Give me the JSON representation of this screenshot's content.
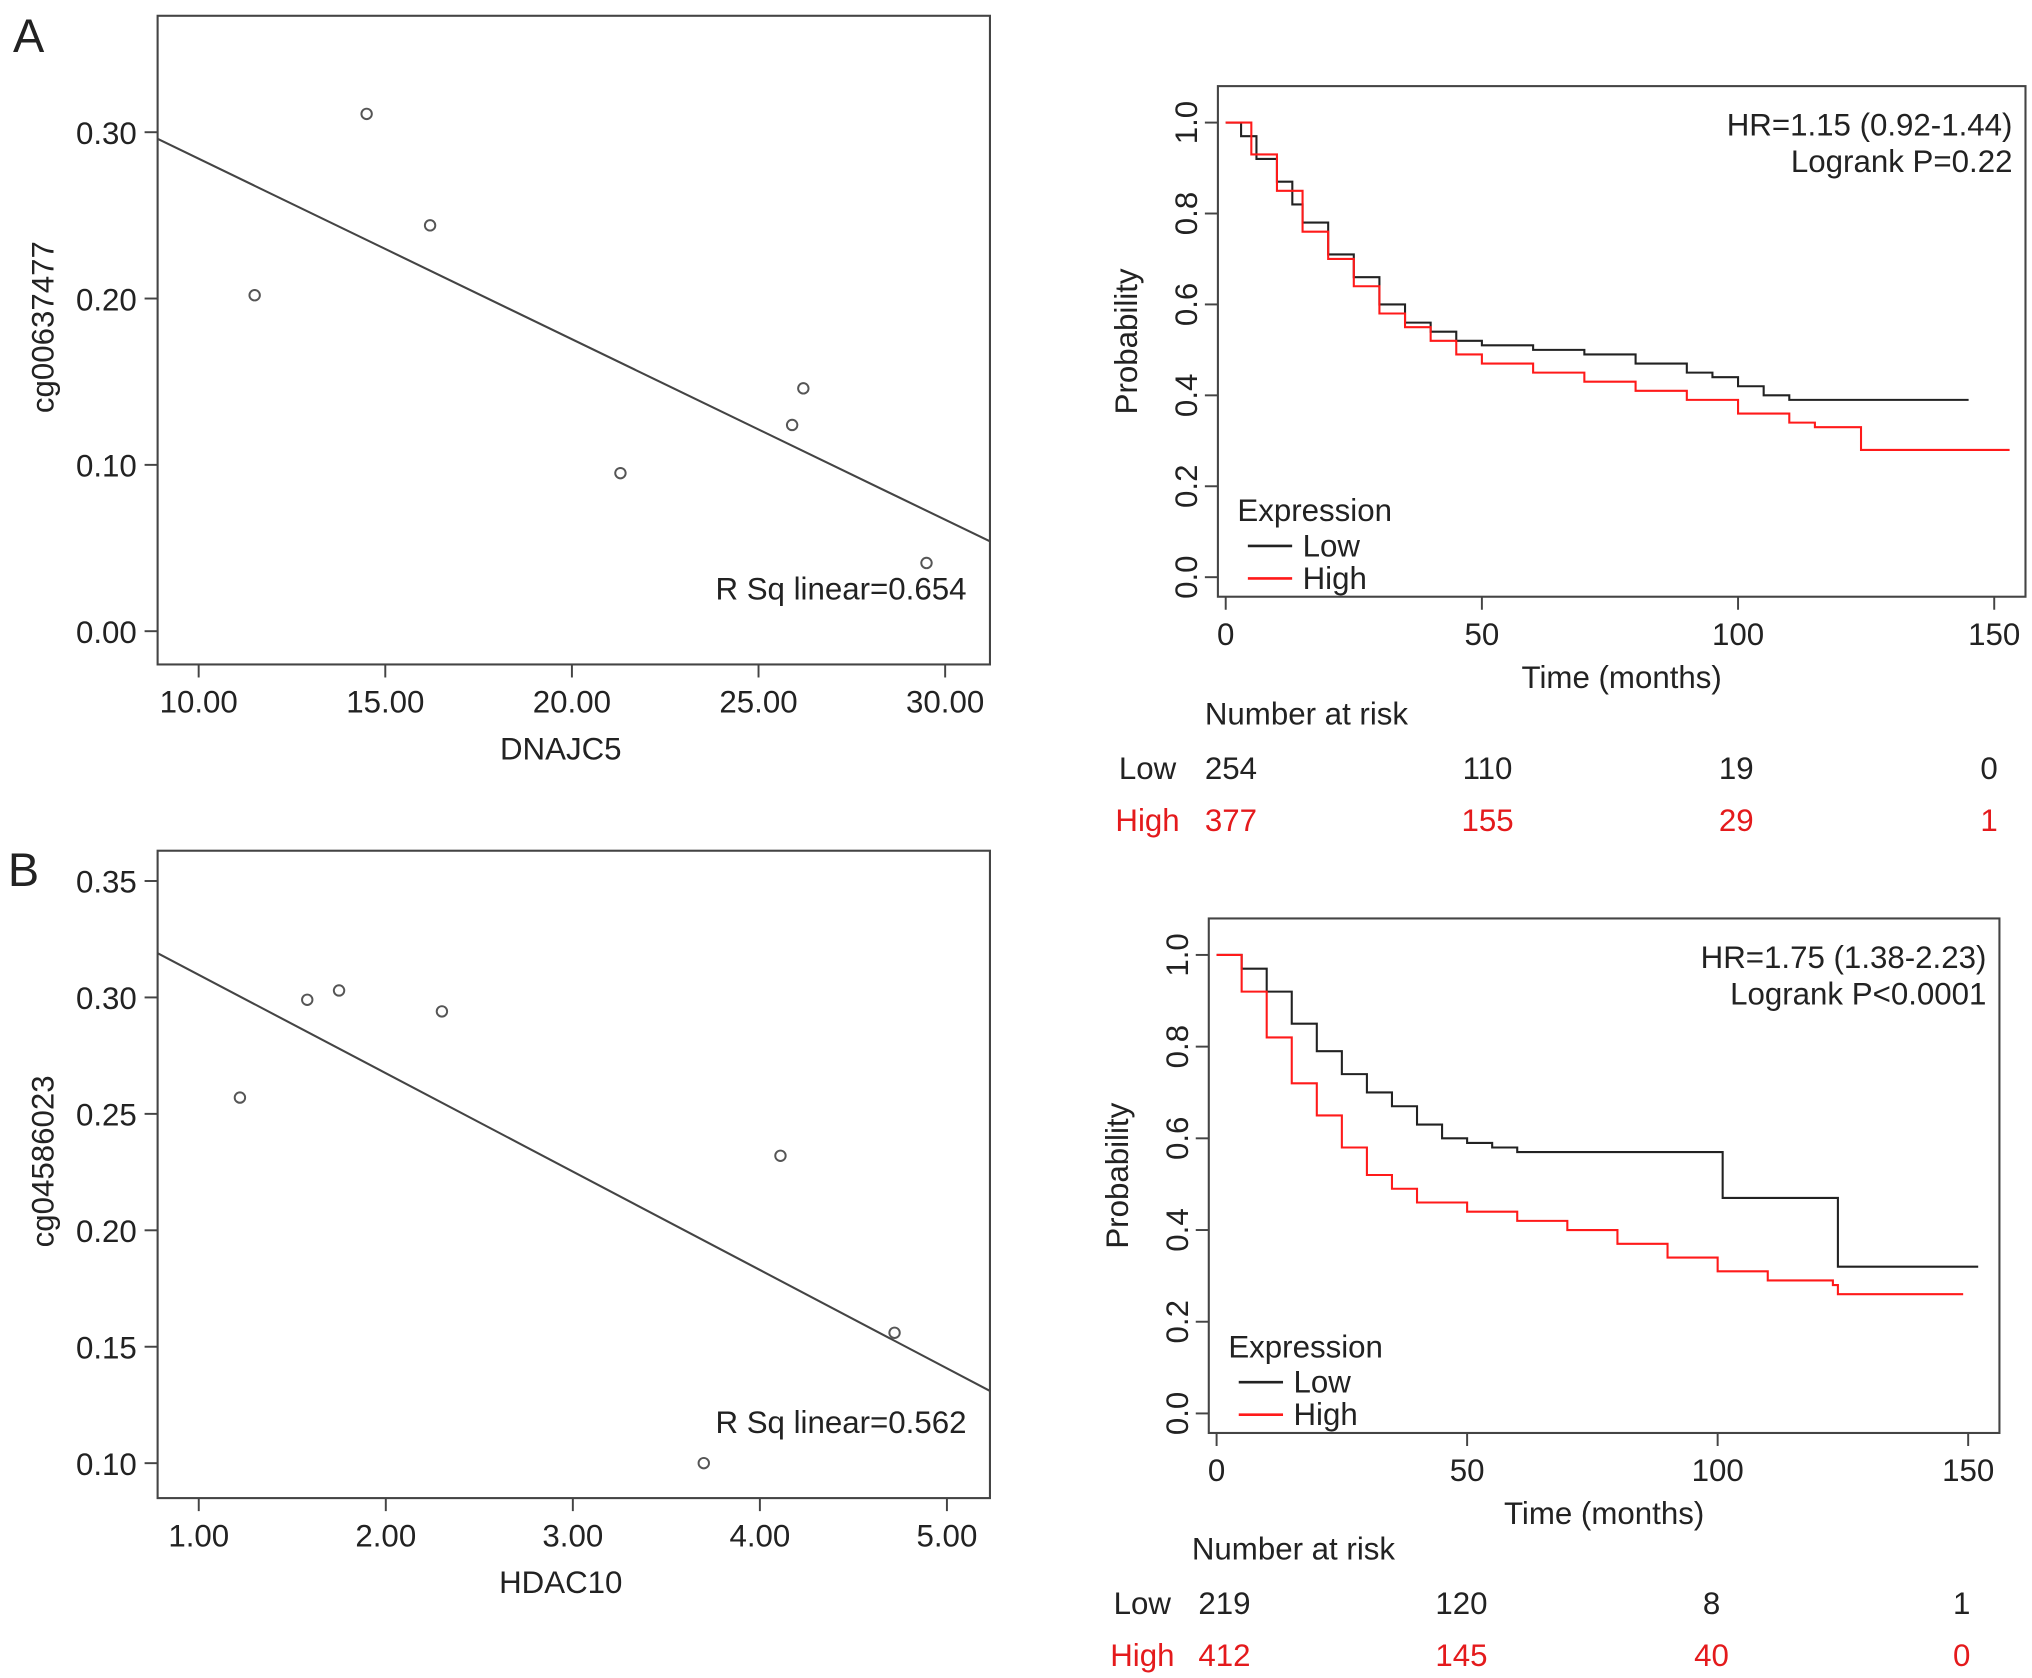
{
  "panel_labels": [
    "A",
    "B"
  ],
  "colors": {
    "low": "#222222",
    "high": "#ff1a1a",
    "fit_line": "#444444",
    "points": "#555555"
  },
  "chart_data": [
    {
      "type": "scatter",
      "panel": "A",
      "xlabel": "DNAJC5",
      "ylabel": "cg00637477",
      "xlim": [
        8.9,
        31.2
      ],
      "ylim": [
        -0.02,
        0.37
      ],
      "xticks": [
        10,
        15,
        20,
        25,
        30
      ],
      "xtick_labels": [
        "10.00",
        "15.00",
        "20.00",
        "25.00",
        "30.00"
      ],
      "yticks": [
        0,
        0.1,
        0.2,
        0.3
      ],
      "ytick_labels": [
        "0.00",
        "0.10",
        "0.20",
        "0.30"
      ],
      "points": [
        [
          14.5,
          0.311
        ],
        [
          16.2,
          0.244
        ],
        [
          11.5,
          0.202
        ],
        [
          26.2,
          0.146
        ],
        [
          25.9,
          0.124
        ],
        [
          21.3,
          0.095
        ],
        [
          29.5,
          0.041
        ]
      ],
      "fit_line": [
        [
          8.9,
          0.296
        ],
        [
          31.2,
          0.054
        ]
      ],
      "annotation": "R Sq linear=0.654"
    },
    {
      "type": "line",
      "panel": "A",
      "xlabel": "Time (months)",
      "ylabel": "Probability",
      "xlim": [
        0,
        155
      ],
      "ylim": [
        -0.04,
        1.04
      ],
      "xticks": [
        0,
        50,
        100,
        150
      ],
      "xtick_labels": [
        "0",
        "50",
        "100",
        "150"
      ],
      "yticks": [
        0,
        0.2,
        0.4,
        0.6,
        0.8,
        1.0
      ],
      "ytick_labels": [
        "0.0",
        "0.2",
        "0.4",
        "0.6",
        "0.8",
        "1.0"
      ],
      "annotations": [
        "HR=1.15 (0.92-1.44)",
        "Logrank P=0.22"
      ],
      "legend_title": "Expression",
      "legend_position": "bottom-left",
      "series": [
        {
          "name": "Low",
          "color": "#222222",
          "x": [
            0,
            3,
            6,
            10,
            13,
            15,
            20,
            25,
            30,
            35,
            40,
            45,
            50,
            60,
            70,
            80,
            90,
            95,
            100,
            105,
            110,
            145
          ],
          "y": [
            1,
            0.97,
            0.92,
            0.87,
            0.82,
            0.78,
            0.71,
            0.66,
            0.6,
            0.56,
            0.54,
            0.52,
            0.51,
            0.5,
            0.49,
            0.47,
            0.45,
            0.44,
            0.42,
            0.4,
            0.39,
            0.39
          ]
        },
        {
          "name": "High",
          "color": "#ff1a1a",
          "x": [
            0,
            5,
            10,
            15,
            20,
            25,
            30,
            35,
            40,
            45,
            50,
            60,
            70,
            80,
            90,
            100,
            110,
            115,
            124,
            153
          ],
          "y": [
            1,
            0.93,
            0.85,
            0.76,
            0.7,
            0.64,
            0.58,
            0.55,
            0.52,
            0.49,
            0.47,
            0.45,
            0.43,
            0.41,
            0.39,
            0.36,
            0.34,
            0.33,
            0.28,
            0.28
          ]
        }
      ],
      "risk_table": {
        "title": "Number at risk",
        "rows": [
          {
            "label": "Low",
            "values": [
              "254",
              "110",
              "19",
              "0"
            ]
          },
          {
            "label": "High",
            "values": [
              "377",
              "155",
              "29",
              "1"
            ]
          }
        ]
      }
    },
    {
      "type": "scatter",
      "panel": "B",
      "xlabel": "HDAC10",
      "ylabel": "cg04586023",
      "xlim": [
        0.78,
        5.23
      ],
      "ylim": [
        0.085,
        0.363
      ],
      "xticks": [
        1,
        2,
        3,
        4,
        5
      ],
      "xtick_labels": [
        "1.00",
        "2.00",
        "3.00",
        "4.00",
        "5.00"
      ],
      "yticks": [
        0.1,
        0.15,
        0.2,
        0.25,
        0.3,
        0.35
      ],
      "ytick_labels": [
        "0.10",
        "0.15",
        "0.20",
        "0.25",
        "0.30",
        "0.35"
      ],
      "points": [
        [
          1.22,
          0.257
        ],
        [
          1.58,
          0.299
        ],
        [
          1.75,
          0.303
        ],
        [
          2.3,
          0.294
        ],
        [
          4.11,
          0.232
        ],
        [
          4.72,
          0.156
        ],
        [
          3.7,
          0.1
        ]
      ],
      "fit_line": [
        [
          0.78,
          0.319
        ],
        [
          5.23,
          0.131
        ]
      ],
      "annotation": "R Sq linear=0.562"
    },
    {
      "type": "line",
      "panel": "B",
      "xlabel": "Time (months)",
      "ylabel": "Probability",
      "xlim": [
        0,
        157
      ],
      "ylim": [
        -0.04,
        1.04
      ],
      "xticks": [
        0,
        50,
        100,
        150
      ],
      "xtick_labels": [
        "0",
        "50",
        "100",
        "150"
      ],
      "yticks": [
        0,
        0.2,
        0.4,
        0.6,
        0.8,
        1.0
      ],
      "ytick_labels": [
        "0.0",
        "0.2",
        "0.4",
        "0.6",
        "0.8",
        "1.0"
      ],
      "annotations": [
        "HR=1.75 (1.38-2.23)",
        "Logrank P<0.0001"
      ],
      "legend_title": "Expression",
      "legend_position": "bottom-left",
      "series": [
        {
          "name": "Low",
          "color": "#222222",
          "x": [
            0,
            5,
            10,
            15,
            20,
            25,
            30,
            35,
            40,
            45,
            50,
            55,
            60,
            101,
            124,
            152
          ],
          "y": [
            1,
            0.97,
            0.92,
            0.85,
            0.79,
            0.74,
            0.7,
            0.67,
            0.63,
            0.6,
            0.59,
            0.58,
            0.57,
            0.47,
            0.32,
            0.32
          ]
        },
        {
          "name": "High",
          "color": "#ff1a1a",
          "x": [
            0,
            5,
            10,
            15,
            20,
            25,
            30,
            35,
            40,
            50,
            60,
            70,
            80,
            90,
            100,
            110,
            123,
            124,
            149
          ],
          "y": [
            1,
            0.92,
            0.82,
            0.72,
            0.65,
            0.58,
            0.52,
            0.49,
            0.46,
            0.44,
            0.42,
            0.4,
            0.37,
            0.34,
            0.31,
            0.29,
            0.28,
            0.26,
            0.26
          ]
        }
      ],
      "risk_table": {
        "title": "Number at risk",
        "rows": [
          {
            "label": "Low",
            "values": [
              "219",
              "120",
              "8",
              "1"
            ]
          },
          {
            "label": "High",
            "values": [
              "412",
              "145",
              "40",
              "0"
            ]
          }
        ]
      }
    }
  ]
}
